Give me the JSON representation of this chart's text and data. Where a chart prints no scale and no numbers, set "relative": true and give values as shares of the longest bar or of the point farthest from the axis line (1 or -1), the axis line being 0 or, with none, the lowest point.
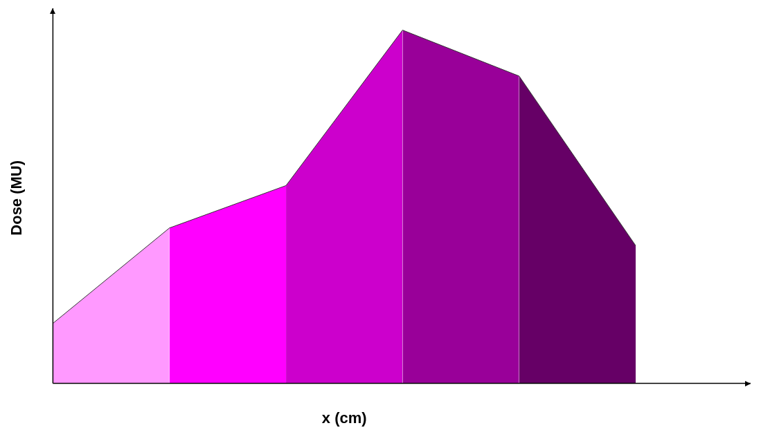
{
  "chart_data": {
    "type": "area",
    "relative": true,
    "xlabel": "x (cm)",
    "ylabel": "Dose (MU)",
    "categories": [
      null,
      null,
      null,
      null,
      null,
      null
    ],
    "series": [
      {
        "color": "#ff99ff",
        "values": [
          0.17,
          0.44,
          null,
          null,
          null,
          null
        ]
      },
      {
        "color": "#ff00ff",
        "values": [
          null,
          0.44,
          0.56,
          null,
          null,
          null
        ]
      },
      {
        "color": "#cc00cc",
        "values": [
          null,
          null,
          0.56,
          1,
          null,
          null
        ]
      },
      {
        "color": "#990099",
        "values": [
          null,
          null,
          null,
          1,
          0.87,
          null
        ]
      },
      {
        "color": "#660066",
        "values": [
          null,
          null,
          null,
          null,
          0.87,
          0.39
        ]
      }
    ],
    "grid": false,
    "legend": false
  }
}
